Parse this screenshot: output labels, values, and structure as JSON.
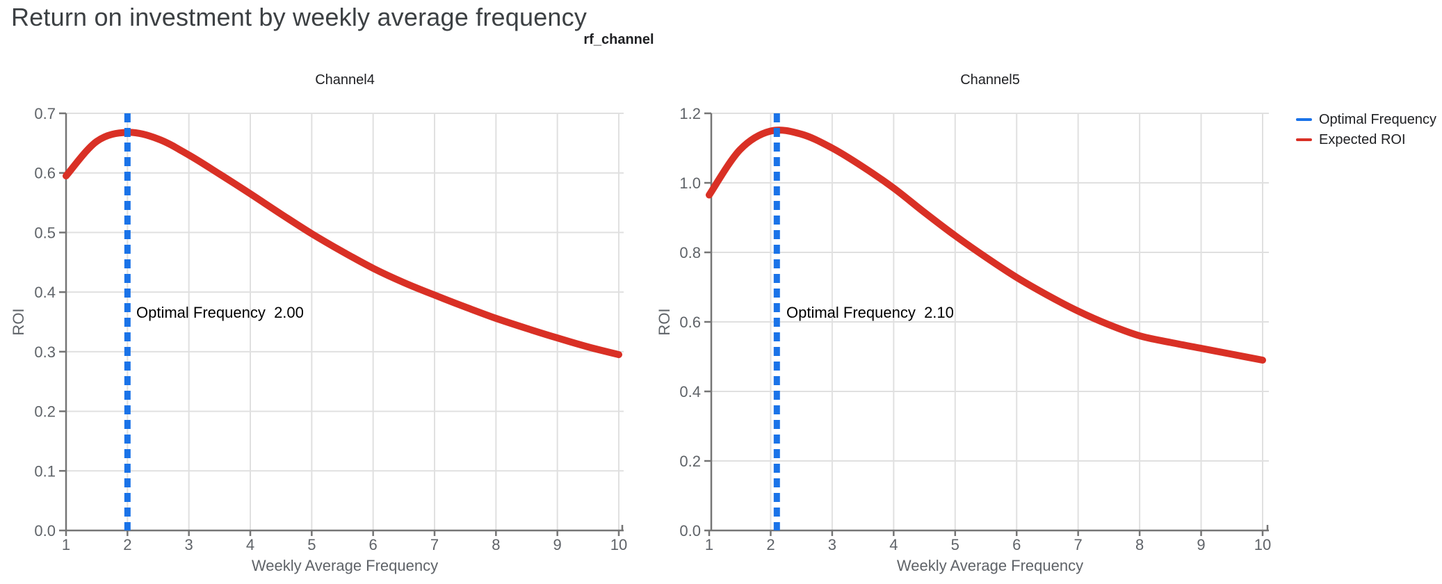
{
  "page": {
    "title": "Return on investment by weekly average frequency",
    "facet_title": "rf_channel",
    "background": "#ffffff"
  },
  "colors": {
    "title_text": "#3c4043",
    "body_text": "#202124",
    "tick_label": "#5f6368",
    "axis_line": "#757575",
    "gridline": "#e0e0e0",
    "optimal_blue": "#1a73e8",
    "roi_red": "#d93025"
  },
  "legend": {
    "items": [
      {
        "label": "Optimal Frequency",
        "color": "#1a73e8"
      },
      {
        "label": "Expected ROI",
        "color": "#d93025"
      }
    ]
  },
  "chart_data": [
    {
      "type": "line",
      "panel_title": "Channel4",
      "xlabel": "Weekly Average Frequency",
      "ylabel": "ROI",
      "xlim": [
        1,
        10
      ],
      "ylim": [
        0,
        0.7
      ],
      "grid": true,
      "xticks": [
        1,
        2,
        3,
        4,
        5,
        6,
        7,
        8,
        9,
        10
      ],
      "xtick_labels": [
        "1",
        "2",
        "3",
        "4",
        "5",
        "6",
        "7",
        "8",
        "9",
        "10"
      ],
      "yticks": [
        0,
        0.1,
        0.2,
        0.3,
        0.4,
        0.5,
        0.6,
        0.7
      ],
      "ytick_labels": [
        "0.0",
        "0.1",
        "0.2",
        "0.3",
        "0.4",
        "0.5",
        "0.6",
        "0.7"
      ],
      "optimal_frequency": 2.0,
      "annotation_label": "Optimal Frequency  2.00",
      "series": [
        {
          "name": "Expected ROI",
          "x": [
            1,
            1.5,
            2,
            2.5,
            3,
            3.5,
            4,
            4.5,
            5,
            5.5,
            6,
            6.5,
            7,
            7.5,
            8,
            8.5,
            9,
            9.5,
            10
          ],
          "y": [
            0.595,
            0.653,
            0.668,
            0.657,
            0.63,
            0.598,
            0.565,
            0.531,
            0.498,
            0.468,
            0.44,
            0.416,
            0.395,
            0.375,
            0.356,
            0.339,
            0.323,
            0.308,
            0.295
          ]
        }
      ]
    },
    {
      "type": "line",
      "panel_title": "Channel5",
      "xlabel": "Weekly Average Frequency",
      "ylabel": "ROI",
      "xlim": [
        1,
        10
      ],
      "ylim": [
        0,
        1.2
      ],
      "grid": true,
      "xticks": [
        1,
        2,
        3,
        4,
        5,
        6,
        7,
        8,
        9,
        10
      ],
      "xtick_labels": [
        "1",
        "2",
        "3",
        "4",
        "5",
        "6",
        "7",
        "8",
        "9",
        "10"
      ],
      "yticks": [
        0,
        0.2,
        0.4,
        0.6,
        0.8,
        1.0,
        1.2
      ],
      "ytick_labels": [
        "0.0",
        "0.2",
        "0.4",
        "0.6",
        "0.8",
        "1.0",
        "1.2"
      ],
      "optimal_frequency": 2.1,
      "annotation_label": "Optimal Frequency  2.10",
      "series": [
        {
          "name": "Expected ROI",
          "x": [
            1,
            1.5,
            2,
            2.5,
            3,
            3.5,
            4,
            4.5,
            5,
            5.5,
            6,
            6.5,
            7,
            7.5,
            8,
            8.5,
            9,
            9.5,
            10
          ],
          "y": [
            0.965,
            1.095,
            1.149,
            1.14,
            1.1,
            1.046,
            0.985,
            0.915,
            0.848,
            0.786,
            0.728,
            0.677,
            0.631,
            0.592,
            0.56,
            0.541,
            0.524,
            0.507,
            0.49
          ]
        }
      ]
    }
  ]
}
